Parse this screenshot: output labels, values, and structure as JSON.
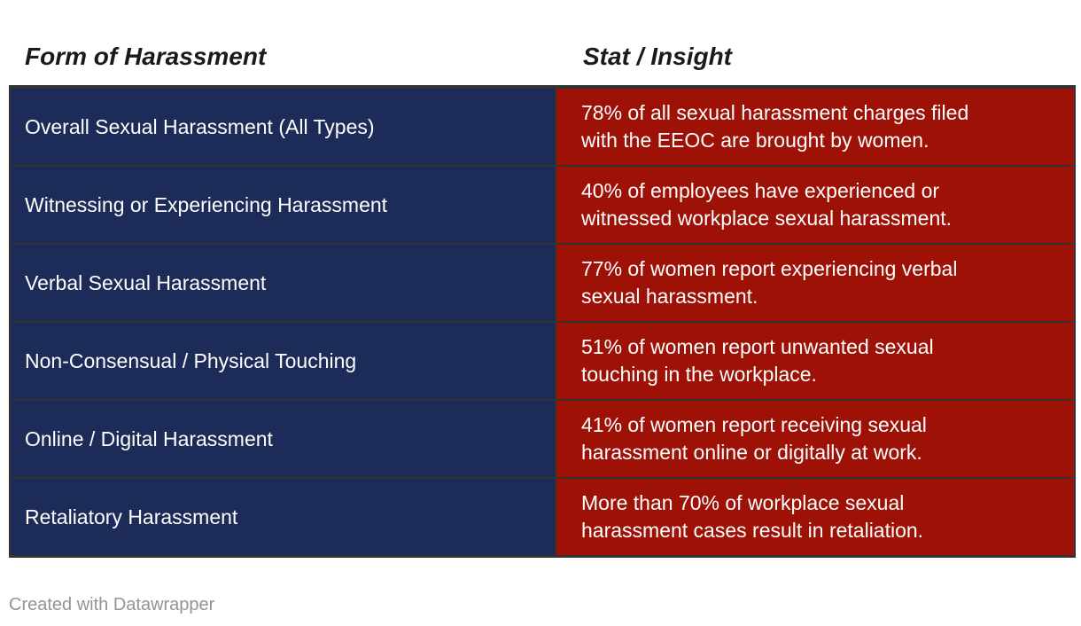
{
  "chart_data": {
    "type": "table",
    "title": "",
    "columns": [
      "Form of Harassment",
      "Stat / Insight"
    ],
    "rows": [
      [
        "Overall Sexual Harassment (All Types)",
        "78% of all sexual harassment charges filed with the EEOC are brought by women."
      ],
      [
        "Witnessing or Experiencing Harassment",
        "40% of employees have experienced or witnessed workplace sexual harassment."
      ],
      [
        "Verbal Sexual Harassment",
        "77% of women report experiencing verbal sexual harassment."
      ],
      [
        "Non-Consensual / Physical Touching",
        "51% of women report unwanted sexual touching in the workplace."
      ],
      [
        "Online / Digital Harassment",
        "41% of women report receiving sexual harassment online or digitally at work."
      ],
      [
        "Retaliatory Harassment",
        "More than 70% of workplace sexual harassment cases result in retaliation."
      ]
    ],
    "stat_values_pct": [
      78,
      40,
      77,
      51,
      41,
      70
    ],
    "legend_position": "none",
    "grid": "row-and-column-separators"
  },
  "header": {
    "col1": "Form of Harassment",
    "col2": "Stat / Insight"
  },
  "table": {
    "rows": [
      {
        "form": "Overall Sexual Harassment (All Types)",
        "stat": "78% of all sexual harassment charges filed\nwith the EEOC are brought by women."
      },
      {
        "form": "Witnessing or Experiencing Harassment",
        "stat": "40% of employees have experienced or\nwitnessed workplace sexual harassment."
      },
      {
        "form": "Verbal Sexual Harassment",
        "stat": "77% of women report experiencing verbal\nsexual harassment."
      },
      {
        "form": "Non-Consensual / Physical Touching",
        "stat": "51% of women report unwanted sexual\ntouching in the workplace."
      },
      {
        "form": "Online / Digital Harassment",
        "stat": "41% of women report receiving sexual\nharassment online or digitally at work."
      },
      {
        "form": "Retaliatory Harassment",
        "stat": "More than 70% of workplace sexual\nharassment cases result in retaliation."
      }
    ]
  },
  "footer": {
    "credit": "Created with Datawrapper"
  },
  "colors": {
    "navy": "#1c2b57",
    "red": "#9d1106",
    "grid-line": "#333333",
    "header-text": "#1a1a1a",
    "footer-text": "#949494",
    "cell-text": "#ffffff"
  }
}
